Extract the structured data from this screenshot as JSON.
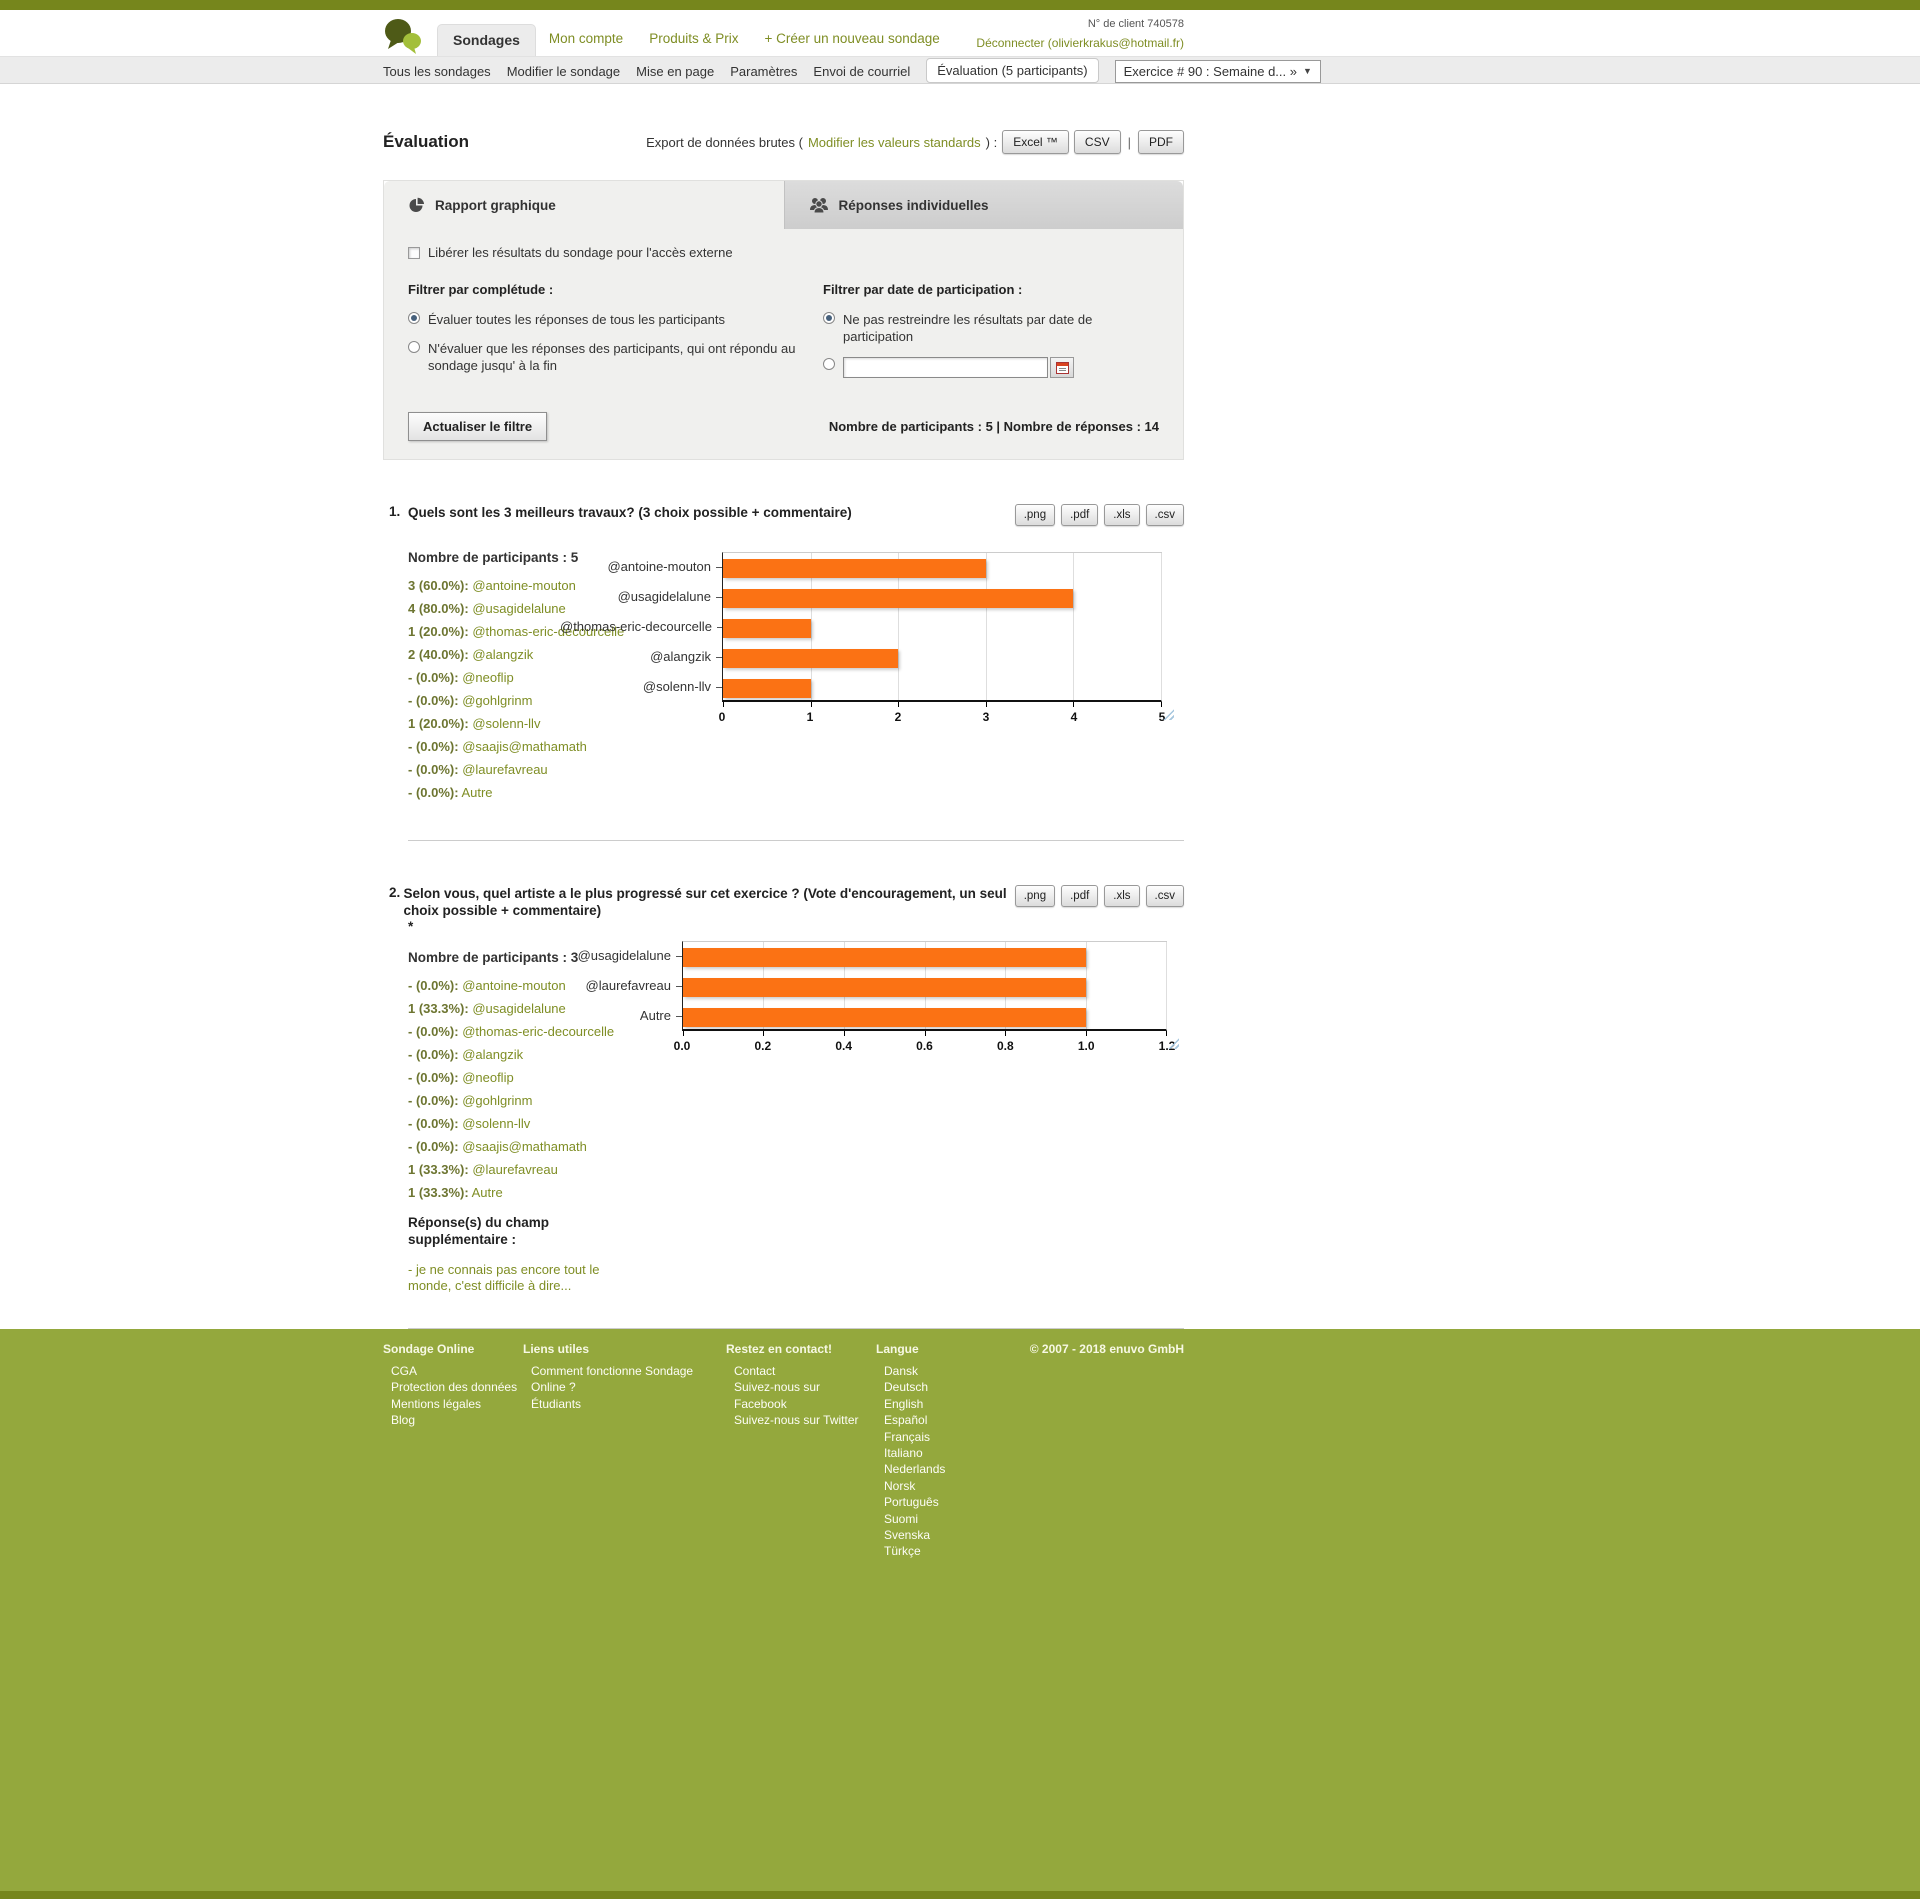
{
  "header": {
    "client_number": "N° de client 740578",
    "logout_link": "Déconnecter (olivierkrakus@hotmail.fr)",
    "nav": [
      "Sondages",
      "Mon compte",
      "Produits & Prix",
      "+ Créer un nouveau sondage"
    ]
  },
  "subnav": {
    "items": [
      "Tous les sondages",
      "Modifier le sondage",
      "Mise en page",
      "Paramètres",
      "Envoi de courriel"
    ],
    "active_item": "Évaluation (5 participants)",
    "survey_dropdown": "Exercice # 90 : Semaine d... »",
    "caret": "▼"
  },
  "page": {
    "title": "Évaluation"
  },
  "export": {
    "label_prefix": "Export de données brutes (",
    "modify_link": "Modifier les valeurs standards",
    "label_suffix": ") :",
    "buttons": [
      "Excel ™",
      "CSV"
    ],
    "separator": "|",
    "pdf_button": "PDF"
  },
  "tabs": {
    "graphic_report": "Rapport graphique",
    "individual_responses": "Réponses individuelles"
  },
  "filter": {
    "release_label": "Libérer les résultats du sondage pour l'accès externe",
    "completeness_title": "Filtrer par complétude :",
    "completeness_all": "Évaluer toutes les réponses de tous les participants",
    "completeness_finished": "N'évaluer que les réponses des participants, qui ont répondu au sondage jusqu' à la fin",
    "date_title": "Filtrer par date de participation :",
    "date_no_restrict": "Ne pas restreindre les résultats par date de participation",
    "date_input_value": "",
    "update_button": "Actualiser le filtre",
    "stats": "Nombre de participants : 5 | Nombre de réponses : 14"
  },
  "questions": [
    {
      "number": "1.",
      "title": "Quels sont les 3 meilleurs travaux? (3 choix possible + commentaire)",
      "star": "",
      "participants_label": "Nombre de participants : 5",
      "export_buttons": [
        ".png",
        ".pdf",
        ".xls",
        ".csv"
      ],
      "answers": [
        {
          "count": "3 (60.0%):",
          "label": "@antoine-mouton"
        },
        {
          "count": "4 (80.0%):",
          "label": "@usagidelalune"
        },
        {
          "count": "1 (20.0%):",
          "label": "@thomas-eric-decourcelle"
        },
        {
          "count": "2 (40.0%):",
          "label": "@alangzik"
        },
        {
          "count": "- (0.0%):",
          "label": "@neoflip"
        },
        {
          "count": "- (0.0%):",
          "label": "@gohlgrinm"
        },
        {
          "count": "1 (20.0%):",
          "label": "@solenn-llv"
        },
        {
          "count": "- (0.0%):",
          "label": "@saajis@mathamath"
        },
        {
          "count": "- (0.0%):",
          "label": "@laurefavreau"
        },
        {
          "count": "- (0.0%):",
          "label": "Autre"
        }
      ]
    },
    {
      "number": "2.",
      "title": "Selon vous, quel artiste a le plus progressé sur cet exercice ? (Vote d'encouragement, un seul choix possible + commentaire)",
      "star": "*",
      "participants_label": "Nombre de participants : 3",
      "export_buttons": [
        ".png",
        ".pdf",
        ".xls",
        ".csv"
      ],
      "answers": [
        {
          "count": "- (0.0%):",
          "label": "@antoine-mouton"
        },
        {
          "count": "1 (33.3%):",
          "label": "@usagidelalune"
        },
        {
          "count": "- (0.0%):",
          "label": "@thomas-eric-decourcelle"
        },
        {
          "count": "- (0.0%):",
          "label": "@alangzik"
        },
        {
          "count": "- (0.0%):",
          "label": "@neoflip"
        },
        {
          "count": "- (0.0%):",
          "label": "@gohlgrinm"
        },
        {
          "count": "- (0.0%):",
          "label": "@solenn-llv"
        },
        {
          "count": "- (0.0%):",
          "label": "@saajis@mathamath"
        },
        {
          "count": "1 (33.3%):",
          "label": "@laurefavreau"
        },
        {
          "count": "1 (33.3%):",
          "label": "Autre"
        }
      ],
      "extra_label": "Réponse(s) du champ supplémentaire :",
      "extra_answer": "- je ne connais pas encore tout le monde, c'est difficile à dire..."
    }
  ],
  "chart_data": [
    {
      "type": "bar",
      "orientation": "horizontal",
      "title": "Quels sont les 3 meilleurs travaux?",
      "categories": [
        "@antoine-mouton",
        "@usagidelalune",
        "@thomas-eric-decourcelle",
        "@alangzik",
        "@solenn-llv"
      ],
      "values": [
        3,
        4,
        1,
        2,
        1
      ],
      "xlim": [
        0,
        5
      ],
      "ticks": [
        "0",
        "1",
        "2",
        "3",
        "4",
        "5"
      ],
      "bar_color": "#fb7214",
      "grid": true,
      "legend": "none"
    },
    {
      "type": "bar",
      "orientation": "horizontal",
      "title": "Selon vous, quel artiste a le plus progressé sur cet exercice ?",
      "categories": [
        "@usagidelalune",
        "@laurefavreau",
        "Autre"
      ],
      "values": [
        1,
        1,
        1
      ],
      "xlim": [
        0,
        1.2
      ],
      "ticks": [
        "0.0",
        "0.2",
        "0.4",
        "0.6",
        "0.8",
        "1.0",
        "1.2"
      ],
      "bar_color": "#fb7214",
      "grid": true,
      "legend": "none"
    }
  ],
  "footer": {
    "columns": [
      {
        "title": "Sondage Online",
        "links": [
          "CGA",
          "Protection des données",
          "Mentions légales",
          "Blog"
        ]
      },
      {
        "title": "Liens utiles",
        "links": [
          "Comment fonctionne Sondage Online ?",
          "Étudiants"
        ]
      },
      {
        "title": "Restez en contact!",
        "links": [
          "Contact",
          "Suivez-nous sur Facebook",
          "Suivez-nous sur Twitter"
        ]
      },
      {
        "title": "Langue",
        "links": [
          "Dansk",
          "Deutsch",
          "English",
          "Español",
          "Français",
          "Italiano",
          "Nederlands",
          "Norsk",
          "Português",
          "Suomi",
          "Svenska",
          "Türkçe"
        ]
      }
    ],
    "copyright": "© 2007 - 2018 enuvo GmbH"
  }
}
